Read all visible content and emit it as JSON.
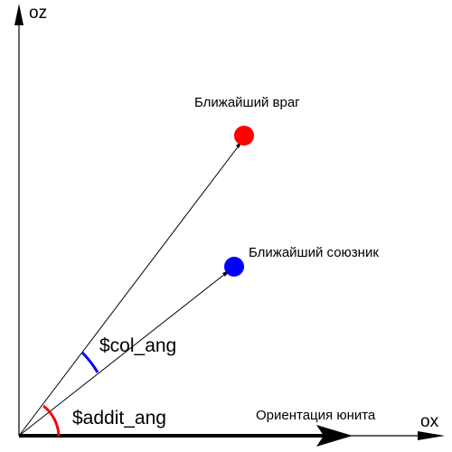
{
  "axes": {
    "z_label": "oz",
    "x_label": "ox"
  },
  "points": {
    "enemy": {
      "label": "Ближайший враг",
      "color": "#ff0000"
    },
    "ally": {
      "label": "Ближайший союзник",
      "color": "#0000ff"
    }
  },
  "angles": {
    "col_ang": {
      "label": "$col_ang",
      "color": "#0000ff"
    },
    "addit_ang": {
      "label": "$addit_ang",
      "color": "#ff0000"
    }
  },
  "orientation_label": "Ориентация юнита"
}
